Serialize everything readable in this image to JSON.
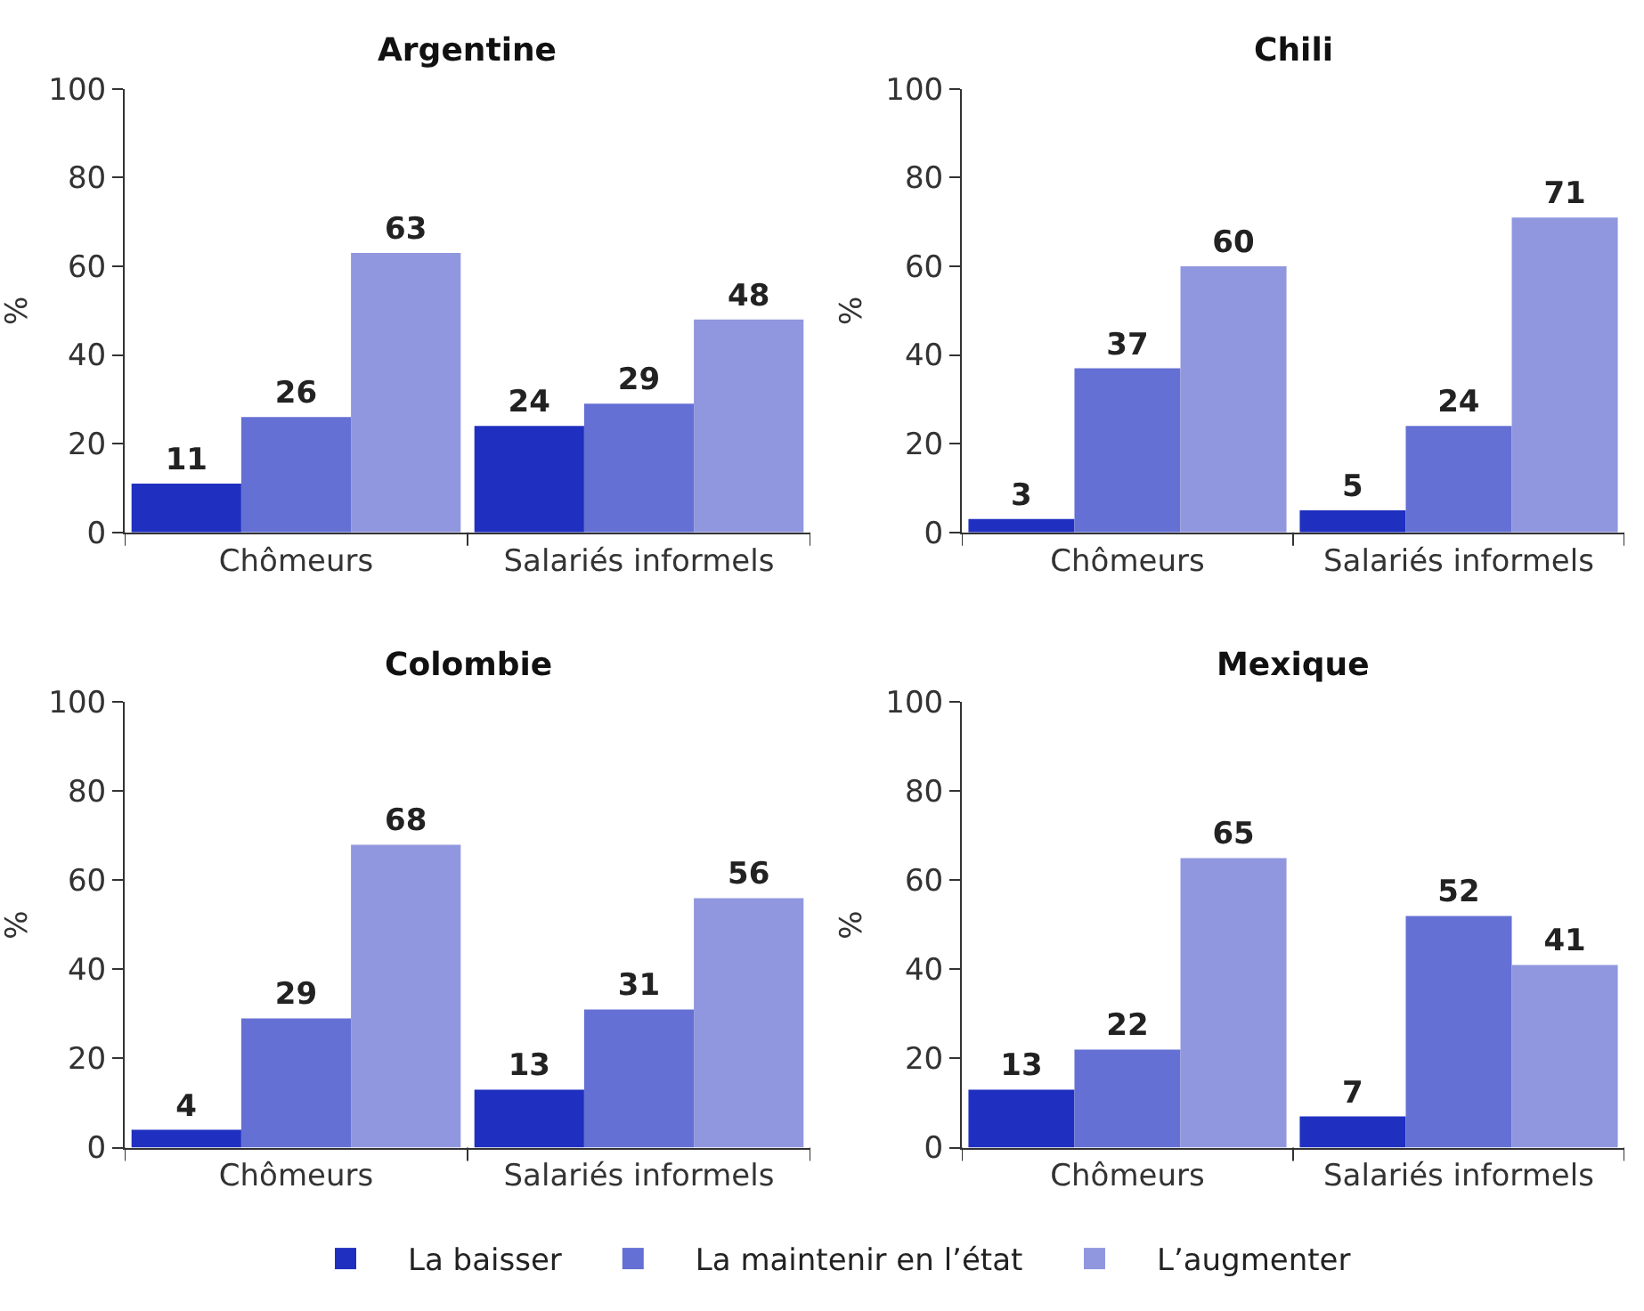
{
  "chart_data": [
    {
      "type": "bar",
      "title": "Argentine",
      "ylabel": "%",
      "categories": [
        "Chômeurs",
        "Salariés informels"
      ],
      "ylim": [
        0,
        100
      ],
      "yticks": [
        0,
        20,
        40,
        60,
        80,
        100
      ],
      "data_labels": true,
      "legend": "bottom",
      "series": [
        {
          "name": "La baisser",
          "color": "#1f2fc0",
          "values": [
            11,
            24
          ]
        },
        {
          "name": "La maintenir en l’état",
          "color": "#6470d4",
          "values": [
            26,
            29
          ]
        },
        {
          "name": "L’augmenter",
          "color": "#9097de",
          "values": [
            63,
            48
          ]
        }
      ]
    },
    {
      "type": "bar",
      "title": "Chili",
      "ylabel": "%",
      "categories": [
        "Chômeurs",
        "Salariés informels"
      ],
      "ylim": [
        0,
        100
      ],
      "yticks": [
        0,
        20,
        40,
        60,
        80,
        100
      ],
      "data_labels": true,
      "series": [
        {
          "color": "#1f2fc0",
          "values": [
            3,
            5
          ]
        },
        {
          "color": "#6470d4",
          "values": [
            37,
            24
          ]
        },
        {
          "color": "#9097de",
          "values": [
            60,
            71
          ]
        }
      ]
    },
    {
      "type": "bar",
      "title": "Colombie",
      "ylabel": "%",
      "categories": [
        "Chômeurs",
        "Salariés informels"
      ],
      "ylim": [
        0,
        100
      ],
      "yticks": [
        0,
        20,
        40,
        60,
        80,
        100
      ],
      "data_labels": true,
      "series": [
        {
          "color": "#1f2fc0",
          "values": [
            4,
            13
          ]
        },
        {
          "color": "#6470d4",
          "values": [
            29,
            31
          ]
        },
        {
          "color": "#9097de",
          "values": [
            68,
            56
          ]
        }
      ]
    },
    {
      "type": "bar",
      "title": "Mexique",
      "ylabel": "%",
      "categories": [
        "Chômeurs",
        "Salariés informels"
      ],
      "ylim": [
        0,
        100
      ],
      "yticks": [
        0,
        20,
        40,
        60,
        80,
        100
      ],
      "data_labels": true,
      "series": [
        {
          "color": "#1f2fc0",
          "values": [
            13,
            7
          ]
        },
        {
          "color": "#6470d4",
          "values": [
            22,
            52
          ]
        },
        {
          "color": "#9097de",
          "values": [
            65,
            41
          ]
        }
      ]
    }
  ]
}
